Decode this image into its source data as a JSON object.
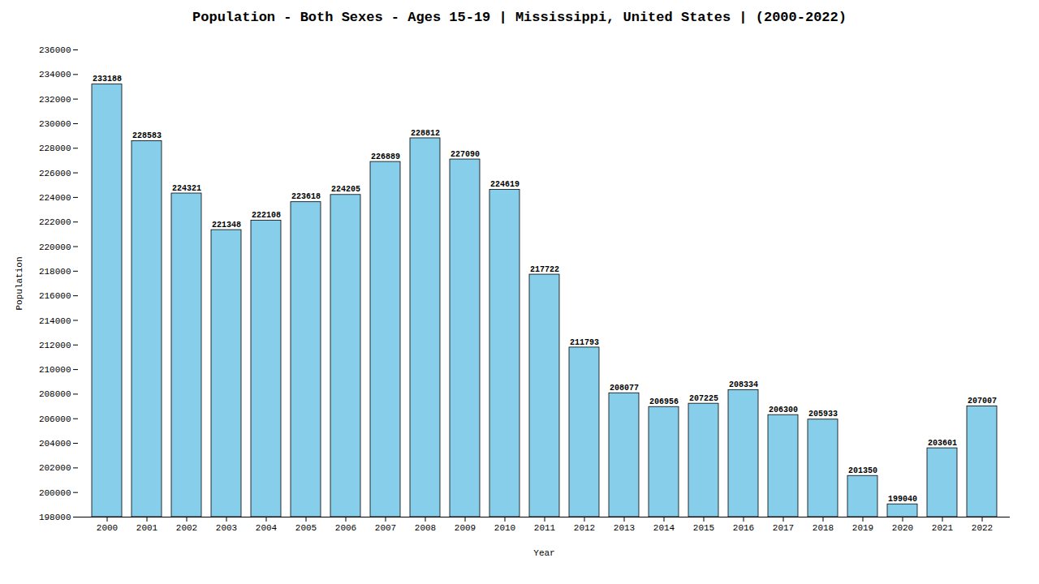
{
  "chart_data": {
    "type": "bar",
    "title": "Population - Both Sexes - Ages 15-19 | Mississippi, United States |  (2000-2022)",
    "xlabel": "Year",
    "ylabel": "Population",
    "categories": [
      "2000",
      "2001",
      "2002",
      "2003",
      "2004",
      "2005",
      "2006",
      "2007",
      "2008",
      "2009",
      "2010",
      "2011",
      "2012",
      "2013",
      "2014",
      "2015",
      "2016",
      "2017",
      "2018",
      "2019",
      "2020",
      "2021",
      "2022"
    ],
    "values": [
      233188,
      228583,
      224321,
      221348,
      222108,
      223618,
      224205,
      226889,
      228812,
      227090,
      224619,
      217722,
      211793,
      208077,
      206956,
      207225,
      208334,
      206300,
      205933,
      201350,
      199040,
      203601,
      207007
    ],
    "color": "#87CEEB",
    "ylim": [
      198000,
      236000
    ],
    "yticks": [
      198000,
      200000,
      202000,
      204000,
      206000,
      208000,
      210000,
      212000,
      214000,
      216000,
      218000,
      220000,
      222000,
      224000,
      226000,
      228000,
      230000,
      232000,
      234000,
      236000
    ],
    "grid": false,
    "data_labels": true
  }
}
